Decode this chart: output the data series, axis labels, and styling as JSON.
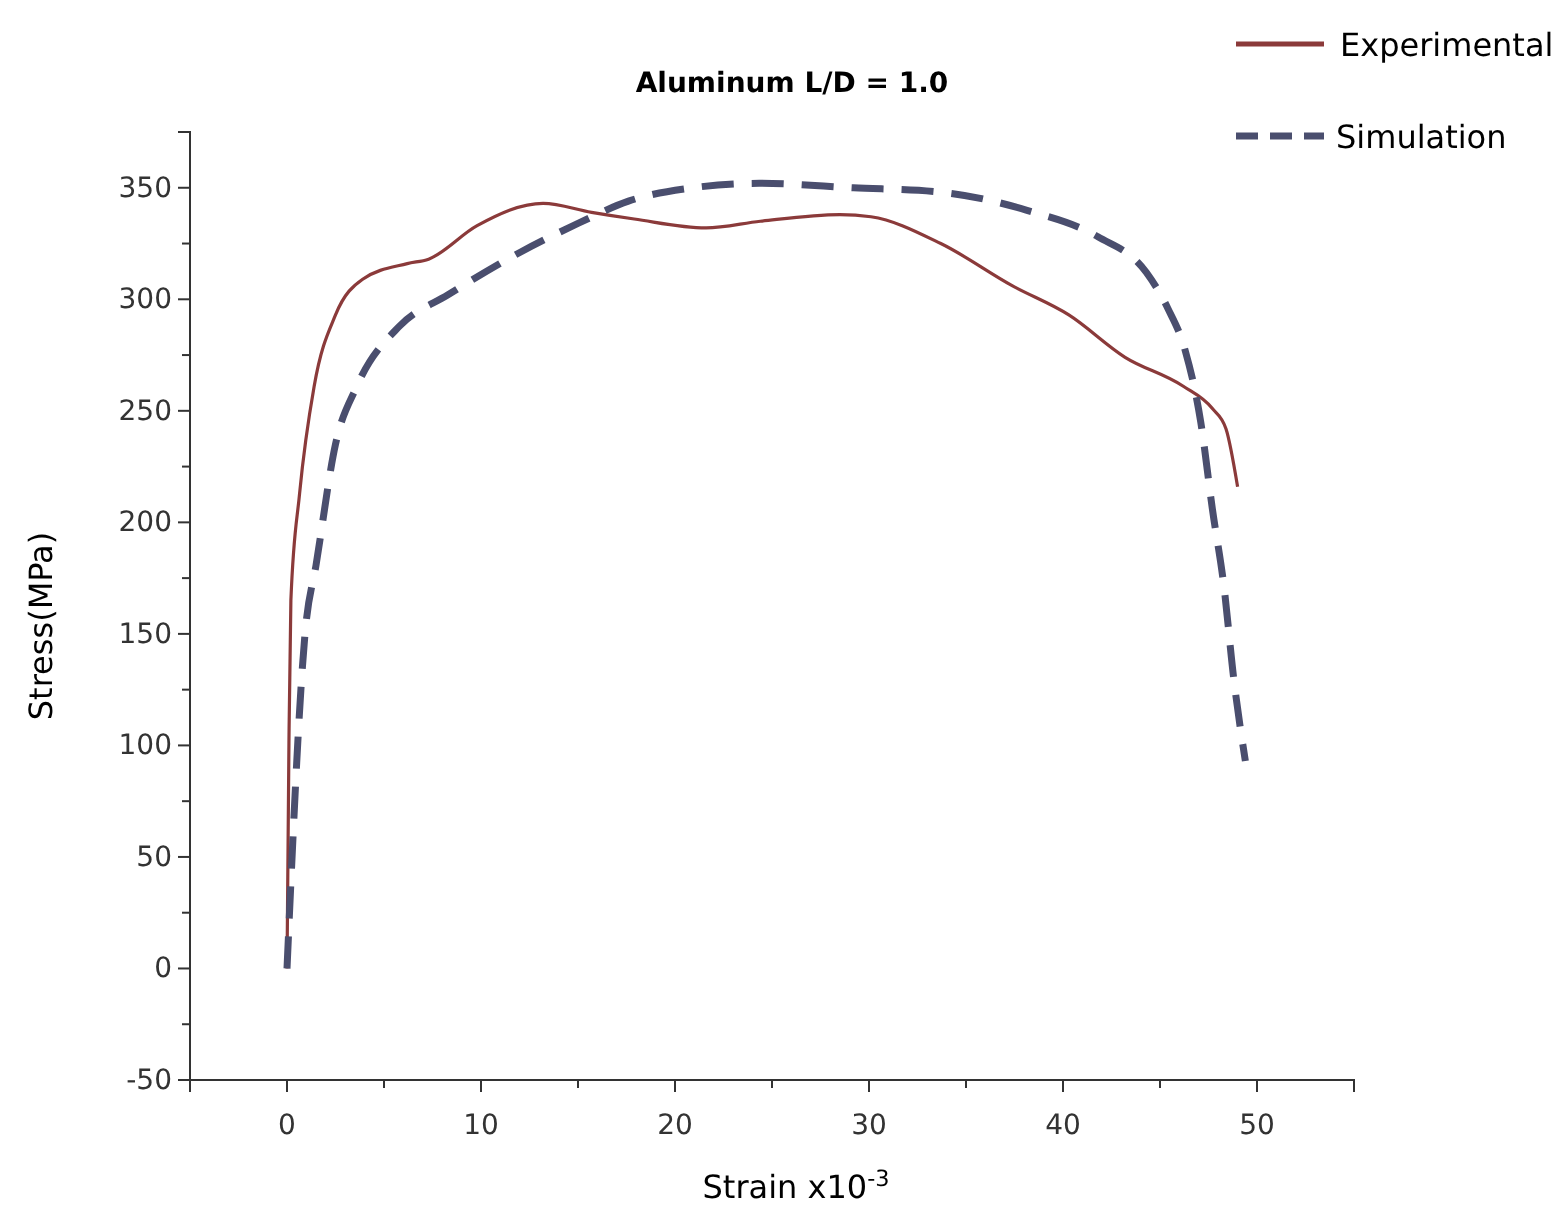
{
  "chart_data": {
    "type": "line",
    "title": "Aluminum L/D = 1.0",
    "xlabel": "Strain  x10$^{-3}$",
    "ylabel": "Stress(MPa)",
    "xlim": [
      -5,
      55
    ],
    "ylim": [
      -50,
      375
    ],
    "xticks": [
      {
        "value": -5,
        "label": null
      },
      0,
      {
        "value": 5,
        "label": null
      },
      10,
      {
        "value": 15,
        "label": null
      },
      20,
      {
        "value": 25,
        "label": null
      },
      30,
      {
        "value": 35,
        "label": null
      },
      40,
      {
        "value": 45,
        "label": null
      },
      50,
      {
        "value": 55,
        "label": null
      }
    ],
    "yticks": [
      -50,
      {
        "value": -25,
        "label": null
      },
      0,
      {
        "value": 25,
        "label": null
      },
      50,
      {
        "value": 75,
        "label": null
      },
      100,
      {
        "value": 125,
        "label": null
      },
      150,
      {
        "value": 175,
        "label": null
      },
      200,
      {
        "value": 225,
        "label": null
      },
      250,
      {
        "value": 275,
        "label": null
      },
      300,
      {
        "value": 325,
        "label": null
      },
      350,
      {
        "value": 375,
        "label": null
      }
    ],
    "grid": false,
    "legend": "top right",
    "marker": "none",
    "series": [
      {
        "name": "Experimental",
        "color": "#8b3a3a",
        "line_style": "solid",
        "x": [
          0,
          0.1,
          0.2,
          0.65,
          1.4,
          2.5,
          3.9,
          6.2,
          7.3,
          9.8,
          13.2,
          15.7,
          17.9,
          21.6,
          24.4,
          28.5,
          30.1,
          33.7,
          37.4,
          40.3,
          43.2,
          46.2,
          47.7,
          48.4,
          49.0
        ],
        "values": [
          0,
          101,
          165,
          213,
          261,
          293,
          309,
          316,
          318,
          333,
          343,
          339,
          336,
          332,
          335,
          338,
          337,
          325,
          306,
          293,
          274,
          261,
          251,
          242,
          216
        ]
      },
      {
        "name": "Simulation",
        "color": "#4a4e6e",
        "line_style": "dashed",
        "x": [
          0,
          0.95,
          1.5,
          2.5,
          3.6,
          5.8,
          8.3,
          12.0,
          15.0,
          17.6,
          20.9,
          24.4,
          29.2,
          33.7,
          38.1,
          41.8,
          44.3,
          45.4,
          46.3,
          47.1,
          47.7,
          48.3,
          48.8,
          49.4
        ],
        "values": [
          0,
          152,
          181,
          235,
          261,
          288,
          302,
          321,
          334,
          344,
          350,
          352,
          350,
          348,
          340,
          328,
          312,
          296,
          277,
          245,
          206,
          171,
          130,
          93
        ]
      }
    ]
  }
}
